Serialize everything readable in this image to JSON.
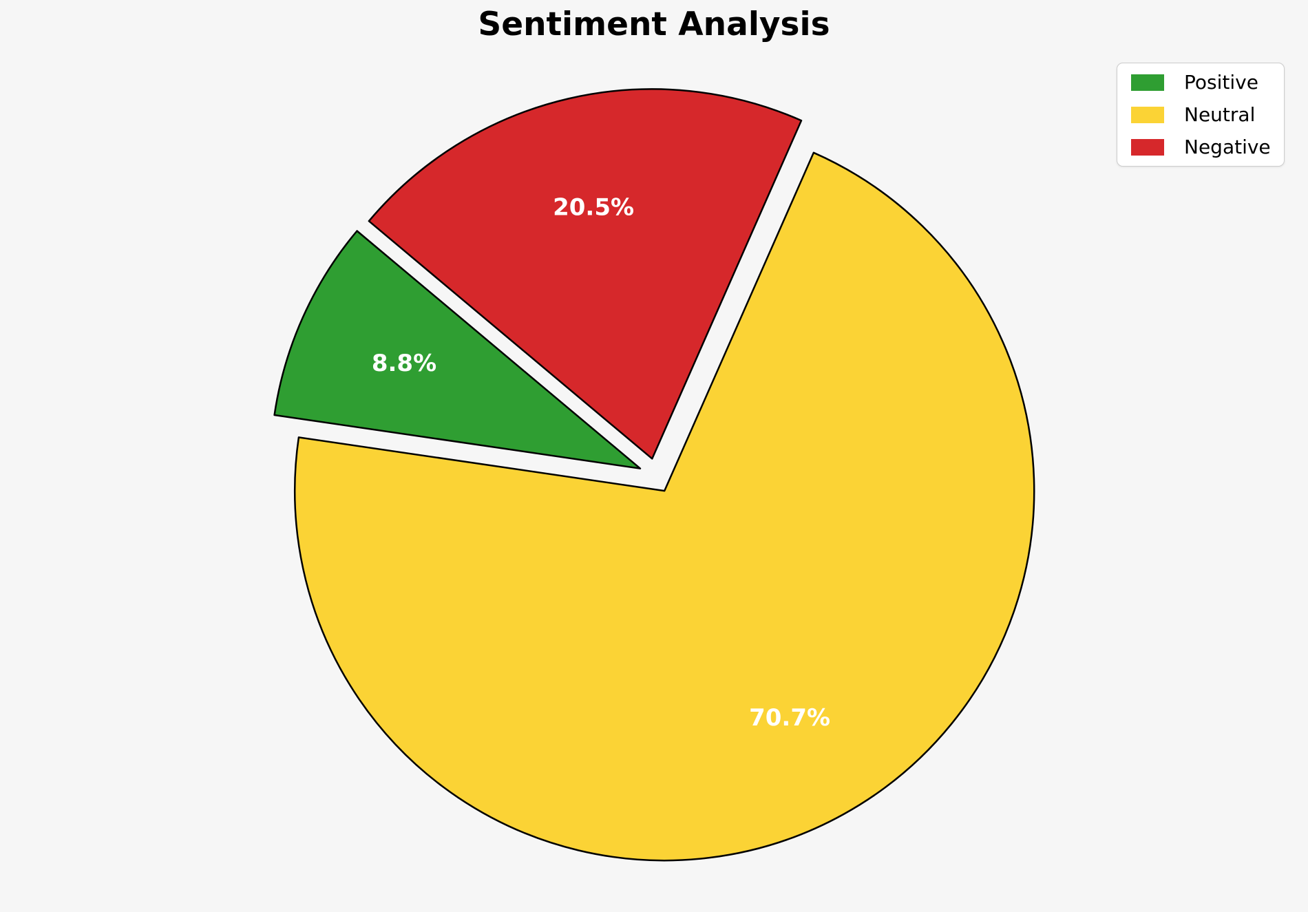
{
  "figure": {
    "background_color": "#f6f6f6"
  },
  "chart_data": {
    "type": "pie",
    "title": "Sentiment Analysis",
    "slices": [
      {
        "label": "Positive",
        "value": 8.8,
        "pct_label": "8.8%",
        "color": "#2f9e32"
      },
      {
        "label": "Neutral",
        "value": 70.7,
        "pct_label": "70.7%",
        "color": "#fbd335"
      },
      {
        "label": "Negative",
        "value": 20.5,
        "pct_label": "20.5%",
        "color": "#d6282b"
      }
    ],
    "startangle": 140,
    "counterclock": true,
    "explode": [
      0.047,
      0.047,
      0.047
    ],
    "pctdistance": 0.7,
    "edge_color": "#000000",
    "edge_width": 2.5,
    "pct_label_color": "#ffffff",
    "legend": {
      "position": "upper right",
      "entries": [
        "Positive",
        "Neutral",
        "Negative"
      ]
    }
  }
}
